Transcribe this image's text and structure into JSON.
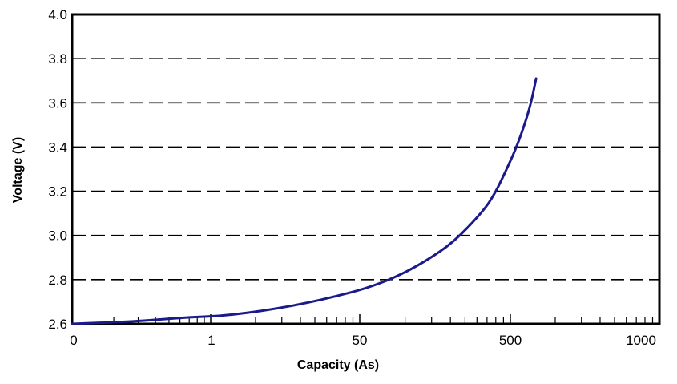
{
  "chart_data": {
    "type": "line",
    "title": "",
    "xlabel": "Capacity (As)",
    "ylabel": "Voltage (V)",
    "x_tick_labels": [
      "0",
      "1",
      "50",
      "500",
      "1000"
    ],
    "y_ticks": [
      2.6,
      2.8,
      3.0,
      3.2,
      3.4,
      3.6,
      3.8,
      4.0
    ],
    "y_tick_labels": [
      "2.6",
      "2.8",
      "3.0",
      "3.2",
      "3.4",
      "3.6",
      "3.8",
      "4.0"
    ],
    "ylim": [
      2.6,
      4.0
    ],
    "grid": "horizontal dashed",
    "line_color": "#1a1a8c",
    "series": [
      {
        "x_position_fraction": [
          0.0,
          0.05,
          0.1,
          0.15,
          0.2,
          0.25,
          0.3,
          0.35,
          0.4,
          0.45,
          0.5,
          0.55,
          0.6,
          0.65,
          0.7,
          0.72,
          0.74,
          0.76,
          0.78,
          0.79
        ],
        "values": [
          2.6,
          2.605,
          2.61,
          2.62,
          2.63,
          2.635,
          2.65,
          2.67,
          2.695,
          2.725,
          2.76,
          2.81,
          2.88,
          2.97,
          3.11,
          3.19,
          3.3,
          3.42,
          3.58,
          3.71
        ]
      }
    ]
  }
}
